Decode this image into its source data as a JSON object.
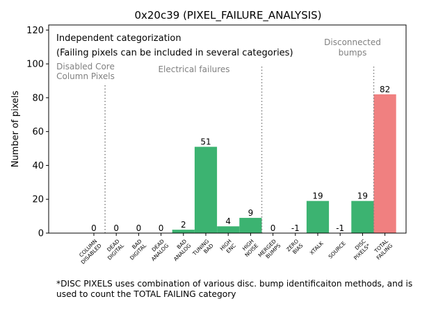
{
  "chart_data": {
    "type": "bar",
    "title": "0x20c39 (PIXEL_FAILURE_ANALYSIS)",
    "xlabel": "",
    "ylabel": "Number of pixels",
    "ylim": [
      0,
      123
    ],
    "yticks": [
      0,
      20,
      40,
      60,
      80,
      100,
      120
    ],
    "categories": [
      [
        "COLUMN",
        "DISABLED"
      ],
      [
        "DEAD",
        "DIGITAL"
      ],
      [
        "BAD",
        "DIGITAL"
      ],
      [
        "DEAD",
        "ANALOG"
      ],
      [
        "BAD",
        "ANALOG"
      ],
      [
        "TUNING",
        "BAD"
      ],
      [
        "HIGH",
        "ENC"
      ],
      [
        "HIGH",
        "NOISE"
      ],
      [
        "MERGED",
        "BUMPS"
      ],
      [
        "ZERO",
        "BIAS"
      ],
      [
        "XTALK"
      ],
      [
        "SOURCE"
      ],
      [
        "DISC",
        "PIXELS*"
      ],
      [
        "TOTAL",
        "FAILING"
      ]
    ],
    "values": [
      0,
      0,
      0,
      0,
      2,
      51,
      4,
      9,
      0,
      -1,
      19,
      -1,
      19,
      82
    ],
    "value_labels": [
      "0",
      "0",
      "0",
      "0",
      "2",
      "51",
      "4",
      "9",
      "0",
      "-1",
      "19",
      "-1",
      "19",
      "82"
    ],
    "bar_colors": [
      "#3cb371",
      "#3cb371",
      "#3cb371",
      "#3cb371",
      "#3cb371",
      "#3cb371",
      "#3cb371",
      "#3cb371",
      "#3cb371",
      "#3cb371",
      "#3cb371",
      "#3cb371",
      "#3cb371",
      "#f08080"
    ],
    "separator_color": "#808080",
    "annotations": {
      "info_line1": "Independent categorization",
      "info_line2": "(Failing pixels can be included in several categories)",
      "group_disabled": [
        "Disabled Core",
        "Column Pixels"
      ],
      "group_electrical": "Electrical failures",
      "group_disconnected": [
        "Disconnected",
        "bumps"
      ]
    }
  },
  "footnote": {
    "line1": "*DISC PIXELS uses combination of various disc. bump identificaiton methods, and is",
    "line2": "used to count the TOTAL FAILING category"
  }
}
